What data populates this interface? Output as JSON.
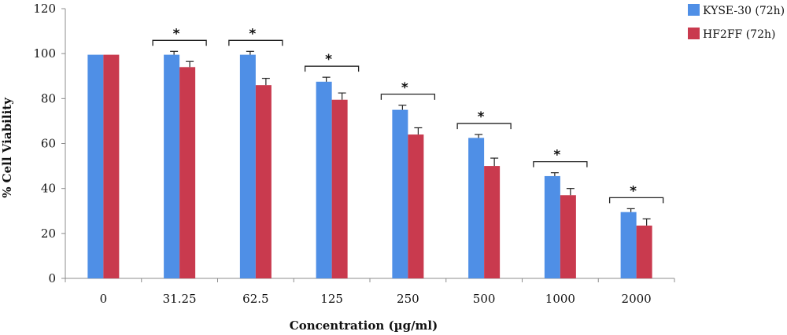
{
  "chart_data": {
    "type": "bar",
    "title": "",
    "xlabel": "Concentration (µg/ml)",
    "ylabel": "% Cell Viability",
    "ylim": [
      0,
      120
    ],
    "yticks": [
      0,
      20,
      40,
      60,
      80,
      100,
      120
    ],
    "grid": false,
    "legend_position": "top-right",
    "categories": [
      "0",
      "31.25",
      "62.5",
      "125",
      "250",
      "500",
      "1000",
      "2000"
    ],
    "series": [
      {
        "name": "KYSE-30 (72h)",
        "color": "#4F8FE6",
        "values": [
          99.5,
          99.5,
          99.5,
          87.5,
          75,
          62.5,
          45.5,
          29.5
        ],
        "errors": [
          0,
          1.5,
          1.5,
          2,
          2,
          1.5,
          1.5,
          1.5
        ]
      },
      {
        "name": "HF2FF (72h)",
        "color": "#C93A4E",
        "values": [
          99.5,
          94,
          86,
          79.5,
          64,
          50,
          37,
          23.5
        ],
        "errors": [
          0,
          2.5,
          3,
          3,
          3,
          3.5,
          3,
          3
        ]
      }
    ],
    "significance": [
      "",
      "*",
      "*",
      "*",
      "*",
      "*",
      "*",
      "*"
    ]
  }
}
